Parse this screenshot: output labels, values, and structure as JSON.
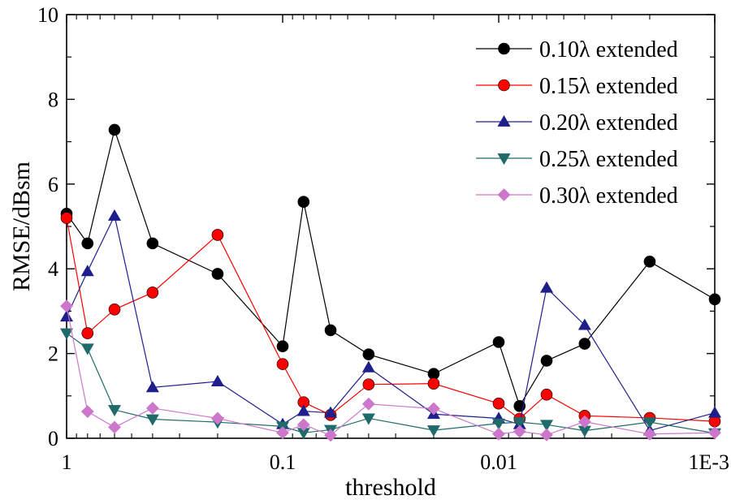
{
  "chart_data": {
    "type": "line",
    "xscale": "log-reversed",
    "xlabel": "threshold",
    "ylabel": "RMSE/dBsm",
    "xlim": [
      1,
      0.001
    ],
    "ylim": [
      0,
      10
    ],
    "x_ticks": [
      {
        "value": 1,
        "label": "1"
      },
      {
        "value": 0.1,
        "label": "0.1"
      },
      {
        "value": 0.01,
        "label": "0.01"
      },
      {
        "value": 0.001,
        "label": "1E-3"
      }
    ],
    "y_ticks": [
      {
        "value": 0,
        "label": "0"
      },
      {
        "value": 2,
        "label": "2"
      },
      {
        "value": 4,
        "label": "4"
      },
      {
        "value": 6,
        "label": "6"
      },
      {
        "value": 8,
        "label": "8"
      },
      {
        "value": 10,
        "label": "10"
      }
    ],
    "legend_position": "top-right",
    "x": [
      1,
      0.8,
      0.6,
      0.4,
      0.2,
      0.1,
      0.08,
      0.06,
      0.04,
      0.02,
      0.01,
      0.008,
      0.006,
      0.004,
      0.002,
      0.001
    ],
    "series": [
      {
        "name": "0.10λ extended",
        "color": "#000000",
        "marker": "circle",
        "values": [
          5.3,
          4.6,
          7.28,
          4.6,
          3.88,
          2.17,
          5.58,
          2.55,
          1.98,
          1.52,
          2.27,
          0.76,
          1.83,
          2.23,
          4.17,
          3.28
        ]
      },
      {
        "name": "0.15λ extended",
        "color": "#ff0000",
        "marker": "circle",
        "values": [
          5.2,
          2.48,
          3.04,
          3.44,
          4.8,
          1.75,
          0.85,
          0.55,
          1.27,
          1.29,
          0.82,
          0.46,
          1.03,
          0.53,
          0.48,
          0.4
        ]
      },
      {
        "name": "0.20λ extended",
        "color": "#1f1f8c",
        "marker": "triangle-up",
        "values": [
          2.87,
          3.94,
          5.25,
          1.2,
          1.34,
          0.33,
          0.64,
          0.6,
          1.67,
          0.57,
          0.47,
          0.33,
          3.55,
          2.67,
          0.18,
          0.6
        ]
      },
      {
        "name": "0.25λ extended",
        "color": "#1f6b6b",
        "marker": "triangle-down",
        "values": [
          2.48,
          2.12,
          0.67,
          0.45,
          0.38,
          0.28,
          0.13,
          0.2,
          0.47,
          0.19,
          0.35,
          0.38,
          0.32,
          0.18,
          0.38,
          0.12
        ]
      },
      {
        "name": "0.30λ extended",
        "color": "#cc77cc",
        "marker": "diamond",
        "values": [
          3.12,
          0.63,
          0.26,
          0.71,
          0.47,
          0.13,
          0.32,
          0.07,
          0.81,
          0.7,
          0.1,
          0.16,
          0.08,
          0.39,
          0.1,
          0.13
        ]
      }
    ]
  }
}
